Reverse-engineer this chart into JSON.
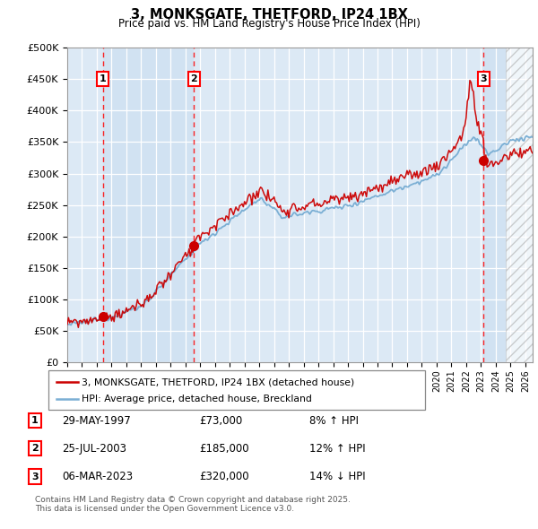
{
  "title": "3, MONKSGATE, THETFORD, IP24 1BX",
  "subtitle": "Price paid vs. HM Land Registry's House Price Index (HPI)",
  "ylim": [
    0,
    500000
  ],
  "yticks": [
    0,
    50000,
    100000,
    150000,
    200000,
    250000,
    300000,
    350000,
    400000,
    450000,
    500000
  ],
  "ytick_labels": [
    "£0",
    "£50K",
    "£100K",
    "£150K",
    "£200K",
    "£250K",
    "£300K",
    "£350K",
    "£400K",
    "£450K",
    "£500K"
  ],
  "legend_line1": "3, MONKSGATE, THETFORD, IP24 1BX (detached house)",
  "legend_line2": "HPI: Average price, detached house, Breckland",
  "purchases": [
    {
      "num": "1",
      "date": "29-MAY-1997",
      "price": 73000,
      "price_str": "£73,000",
      "pct": "8% ↑ HPI"
    },
    {
      "num": "2",
      "date": "25-JUL-2003",
      "price": 185000,
      "price_str": "£185,000",
      "pct": "12% ↑ HPI"
    },
    {
      "num": "3",
      "date": "06-MAR-2023",
      "price": 320000,
      "price_str": "£320,000",
      "pct": "14% ↓ HPI"
    }
  ],
  "footnote_line1": "Contains HM Land Registry data © Crown copyright and database right 2025.",
  "footnote_line2": "This data is licensed under the Open Government Licence v3.0.",
  "line_color_property": "#cc0000",
  "line_color_hpi": "#7bafd4",
  "bg_color": "#dce9f5",
  "purchase_dates_decimal": [
    1997.41,
    2003.57,
    2023.18
  ],
  "purchase_prices": [
    73000,
    185000,
    320000
  ],
  "xlim_start": 1995.0,
  "xlim_end": 2026.5
}
